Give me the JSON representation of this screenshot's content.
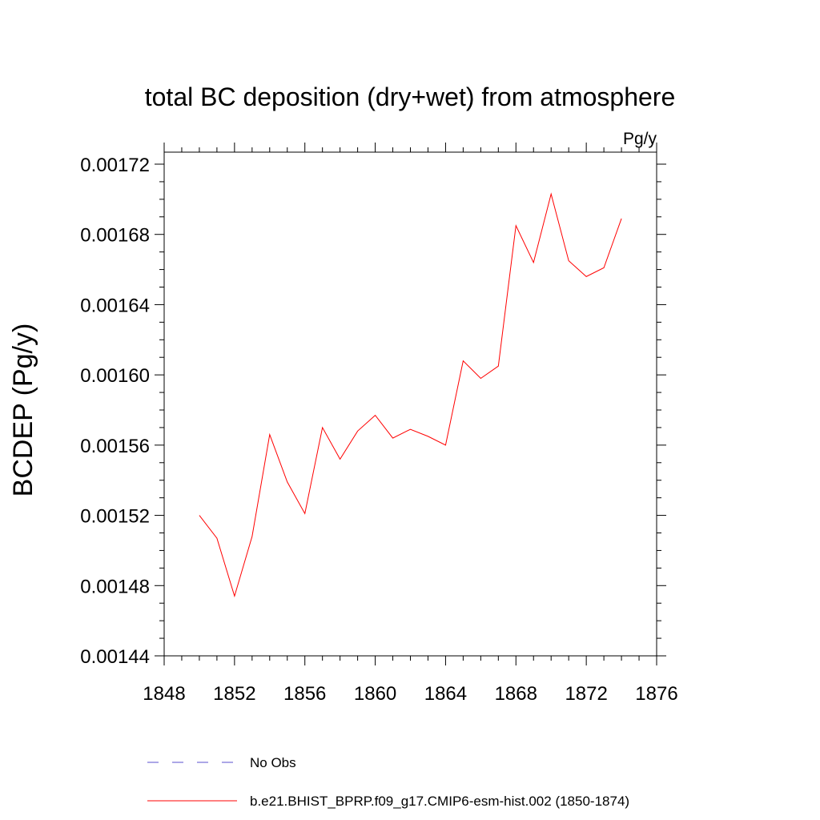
{
  "chart_data": {
    "type": "line",
    "title": "total BC deposition (dry+wet) from atmosphere",
    "units": "Pg/y",
    "ylabel": "BCDEP  (Pg/y)",
    "xlabel": "",
    "xlim": [
      1848,
      1876
    ],
    "ylim": [
      0.00144,
      0.00173
    ],
    "x_ticks": [
      "1848",
      "1852",
      "1856",
      "1860",
      "1864",
      "1868",
      "1872",
      "1876"
    ],
    "y_ticks": [
      "0.00144",
      "0.00148",
      "0.00152",
      "0.00156",
      "0.00160",
      "0.00164",
      "0.00168",
      "0.00172"
    ],
    "grid": false,
    "legend_position": "bottom",
    "series": [
      {
        "name": "No Obs",
        "color": "#5a4fcf",
        "dash": "dashed",
        "x": [],
        "y": []
      },
      {
        "name": "b.e21.BHIST_BPRP.f09_g17.CMIP6-esm-hist.002 (1850-1874)",
        "color": "#ff0000",
        "dash": "solid",
        "x": [
          1850,
          1851,
          1852,
          1853,
          1854,
          1855,
          1856,
          1857,
          1858,
          1859,
          1860,
          1861,
          1862,
          1863,
          1864,
          1865,
          1866,
          1867,
          1868,
          1869,
          1870,
          1871,
          1872,
          1873,
          1874
        ],
        "y": [
          0.00152,
          0.001507,
          0.001474,
          0.001508,
          0.001566,
          0.001539,
          0.001521,
          0.00157,
          0.001552,
          0.001568,
          0.001577,
          0.001564,
          0.001569,
          0.001565,
          0.00156,
          0.001608,
          0.001598,
          0.001605,
          0.001685,
          0.001664,
          0.001703,
          0.001665,
          0.001656,
          0.001661,
          0.001689
        ]
      }
    ]
  }
}
